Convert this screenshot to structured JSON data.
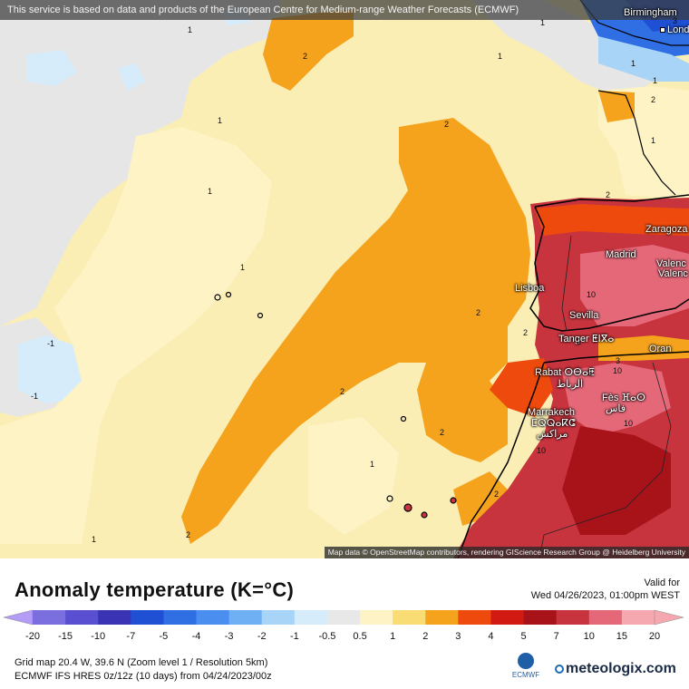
{
  "map": {
    "banner": "This service is based on data and products of the European Centre for Medium-range Weather Forecasts (ECMWF)",
    "attribution": "Map data © OpenStreetMap contributors, rendering GIScience Research Group @ Heidelberg University",
    "cities": [
      {
        "name": "Birmingham"
      },
      {
        "name": "Lond"
      },
      {
        "name": "Zaragoza"
      },
      {
        "name": "Madrid"
      },
      {
        "name": "Valenc"
      },
      {
        "name": "Valenc"
      },
      {
        "name": "Lisboa"
      },
      {
        "name": "Sevilla"
      },
      {
        "name": "Tanger ⵟⵏⴳⴰ"
      },
      {
        "name": "Oran"
      },
      {
        "name": "Rabat ⵔⴱⴰⵟ"
      },
      {
        "name": "الرباط"
      },
      {
        "name": "Fès ⴼⴰⵙ"
      },
      {
        "name": "فاس"
      },
      {
        "name": "Marrakech"
      },
      {
        "name": "ⵎⵕⵕⴰⴽⵛ"
      },
      {
        "name": "مراكش"
      }
    ],
    "contour_labels": [
      "1",
      "2",
      "1",
      "2",
      "1",
      "2",
      "1",
      "1",
      "-1",
      "-1",
      "2",
      "2",
      "2",
      "1",
      "1",
      "2",
      "2",
      "2",
      "1",
      "2",
      "10",
      "3",
      "10",
      "10",
      "10",
      "2",
      "1",
      "2",
      "3",
      "1",
      "1"
    ]
  },
  "legend": {
    "title": "Anomaly temperature (K=°C)",
    "valid_label": "Valid for",
    "valid_date": "Wed 04/26/2023, 01:00pm WEST",
    "ticks": [
      "-20",
      "-15",
      "-10",
      "-7",
      "-5",
      "-4",
      "-3",
      "-2",
      "-1",
      "-0.5",
      "0.5",
      "1",
      "2",
      "3",
      "4",
      "5",
      "7",
      "10",
      "15",
      "20"
    ],
    "colors": [
      "#b39cf5",
      "#7b6fe0",
      "#5a4fd0",
      "#3a34b5",
      "#1f4fd3",
      "#2f6fe3",
      "#4a8ff0",
      "#6fb0f5",
      "#a8d4f8",
      "#d6ecfb",
      "#e8e8e8",
      "#fdf3c4",
      "#f9dc74",
      "#f5a21c",
      "#ee4a0e",
      "#d11a12",
      "#a8131a",
      "#c8343e",
      "#e46878",
      "#f6a8b0"
    ],
    "grid_info": "Grid map 20.4 W, 39.6 N (Zoom level 1 / Resolution 5km)",
    "model_info": "ECMWF IFS HRES 0z/12z (10 days)  from  04/24/2023/00z",
    "ecmwf_logo_text": "ECMWF",
    "brand": "meteologix.com"
  }
}
